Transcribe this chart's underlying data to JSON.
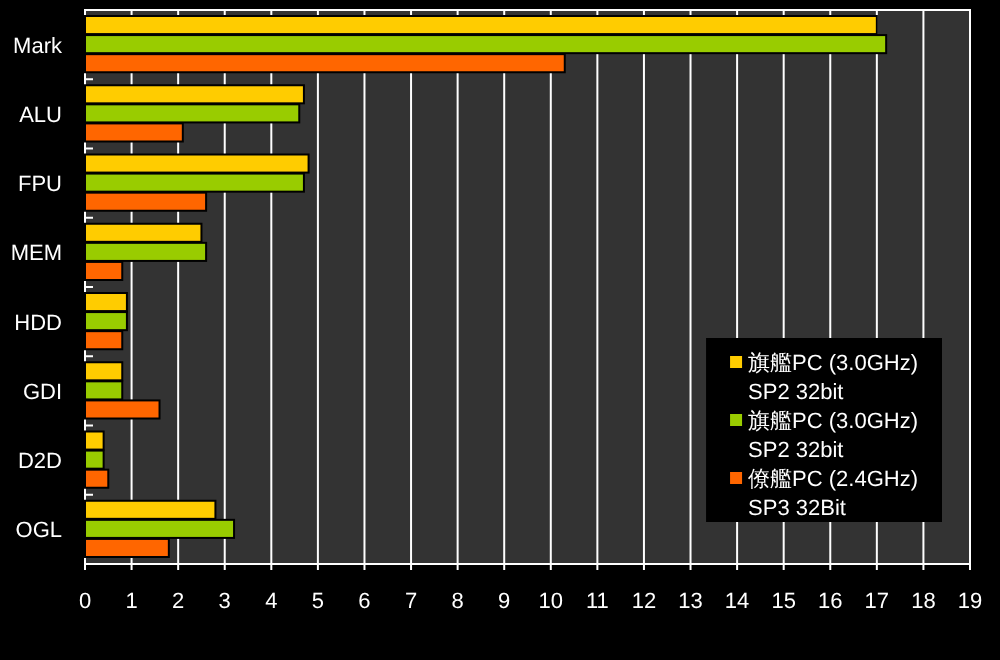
{
  "chart_data": {
    "type": "bar",
    "orientation": "horizontal",
    "categories": [
      "Mark",
      "ALU",
      "FPU",
      "MEM",
      "HDD",
      "GDI",
      "D2D",
      "OGL"
    ],
    "series": [
      {
        "name": "旗艦PC (3.0GHz)\nSP2 32bit",
        "color": "#ffcc00",
        "values": [
          17.0,
          4.7,
          4.8,
          2.5,
          0.9,
          0.8,
          0.4,
          2.8
        ]
      },
      {
        "name": "旗艦PC (3.0GHz)\nSP2 32bit",
        "color": "#99cc00",
        "values": [
          17.2,
          4.6,
          4.7,
          2.6,
          0.9,
          0.8,
          0.4,
          3.2
        ]
      },
      {
        "name": "僚艦PC (2.4GHz)\nSP3 32Bit",
        "color": "#ff6600",
        "values": [
          10.3,
          2.1,
          2.6,
          0.8,
          0.8,
          1.6,
          0.5,
          1.8
        ]
      }
    ],
    "xlim": [
      0,
      19
    ],
    "xticks": [
      0,
      1,
      2,
      3,
      4,
      5,
      6,
      7,
      8,
      9,
      10,
      11,
      12,
      13,
      14,
      15,
      16,
      17,
      18,
      19
    ],
    "grid": "x",
    "legend": "bottom right"
  }
}
